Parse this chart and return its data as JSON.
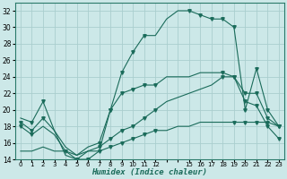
{
  "xlabel": "Humidex (Indice chaleur)",
  "bg_color": "#cce8e8",
  "grid_color": "#aacece",
  "line_color": "#1a6b5a",
  "xlim": [
    -0.5,
    23.5
  ],
  "ylim": [
    14,
    33
  ],
  "yticks": [
    14,
    16,
    18,
    20,
    22,
    24,
    26,
    28,
    30,
    32
  ],
  "xtick_positions": [
    0,
    1,
    2,
    3,
    4,
    5,
    6,
    7,
    8,
    9,
    10,
    11,
    12,
    13,
    14,
    15,
    16,
    17,
    18,
    19,
    20,
    21,
    22,
    23
  ],
  "xtick_labels": [
    "0",
    "1",
    "2",
    "3",
    "4",
    "5",
    "6",
    "7",
    "8",
    "9",
    "10",
    "11",
    "12",
    "",
    "",
    "15",
    "16",
    "17",
    "18",
    "19",
    "20",
    "21",
    "22",
    "23"
  ],
  "line1_x": [
    0,
    1,
    2,
    3,
    4,
    5,
    6,
    7,
    8,
    9,
    10,
    11,
    12,
    13,
    14,
    15,
    16,
    17,
    18,
    19,
    20,
    21,
    22,
    23
  ],
  "line1_y": [
    19,
    18.5,
    21,
    17.5,
    14.5,
    14,
    15,
    15,
    20,
    24.5,
    27,
    29,
    29,
    31,
    32,
    32,
    31.5,
    31,
    31,
    30,
    20,
    25,
    20,
    18
  ],
  "line2_x": [
    0,
    1,
    2,
    3,
    4,
    5,
    6,
    7,
    8,
    9,
    10,
    11,
    12,
    13,
    14,
    15,
    16,
    17,
    18,
    19,
    20,
    21,
    22,
    23
  ],
  "line2_y": [
    18.5,
    17.5,
    19,
    17.5,
    15.5,
    14.5,
    15.5,
    16,
    20,
    22,
    22.5,
    23,
    23,
    24,
    24,
    24,
    24.5,
    24.5,
    24.5,
    24,
    22,
    22,
    19,
    18
  ],
  "line3_x": [
    0,
    1,
    2,
    3,
    4,
    5,
    6,
    7,
    8,
    9,
    10,
    11,
    12,
    13,
    14,
    15,
    16,
    17,
    18,
    19,
    20,
    21,
    22,
    23
  ],
  "line3_y": [
    18,
    17,
    18,
    17,
    15,
    14.5,
    15,
    15.5,
    16.5,
    17.5,
    18,
    19,
    20,
    21,
    21.5,
    22,
    22.5,
    23,
    24,
    24,
    21,
    20.5,
    18,
    16.5
  ],
  "line4_x": [
    0,
    1,
    2,
    3,
    4,
    5,
    6,
    7,
    8,
    9,
    10,
    11,
    12,
    13,
    14,
    15,
    16,
    17,
    18,
    19,
    20,
    21,
    22,
    23
  ],
  "line4_y": [
    15,
    15,
    15.5,
    15,
    15,
    14,
    14,
    15,
    15.5,
    16,
    16.5,
    17,
    17.5,
    17.5,
    18,
    18,
    18.5,
    18.5,
    18.5,
    18.5,
    18.5,
    18.5,
    18.5,
    18
  ],
  "marker": "v",
  "marker_size": 2.5,
  "linewidth": 0.8
}
